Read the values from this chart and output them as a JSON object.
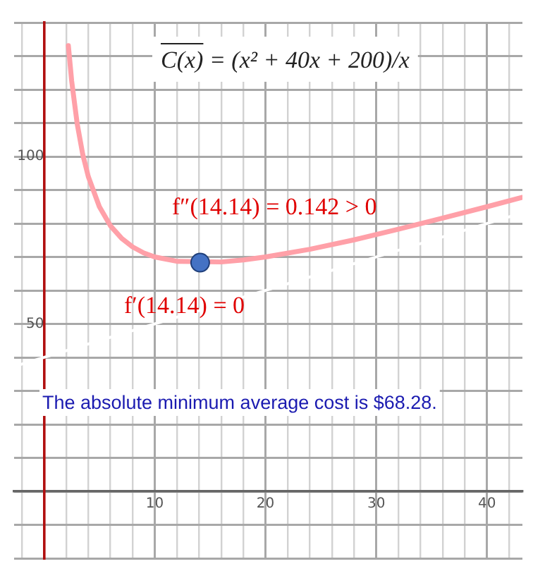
{
  "chart_data": {
    "type": "line",
    "title": "C(x) = (x² + 40x + 200)/x",
    "annotations": [
      "f″(14.14) = 0.142 > 0",
      "f′(14.14) = 0",
      "The absolute minimum average cost is $68.28."
    ],
    "series": [
      {
        "type": "line",
        "color": "#ffa0a8",
        "marker": "none",
        "x": [
          2.2,
          2.5,
          3,
          3.5,
          4,
          5,
          6,
          7,
          8,
          9,
          10,
          12,
          16,
          18,
          20,
          24,
          28,
          32,
          36,
          40,
          43.2
        ],
        "values": [
          133.1,
          122.5,
          109.7,
          100.6,
          94,
          85,
          79.3,
          75.6,
          73,
          71.2,
          70,
          68.7,
          68.5,
          69.1,
          70,
          72.3,
          75.1,
          78.3,
          81.6,
          85,
          87.8
        ]
      },
      {
        "type": "line",
        "color": "#ffffff",
        "marker": "none",
        "x": [
          -2.7,
          43.2
        ],
        "values": [
          37.3,
          83.2
        ]
      },
      {
        "type": "scatter",
        "color": "#4472c4",
        "marker": "circle",
        "x": [
          14.1
        ],
        "values": [
          68.3
        ]
      }
    ],
    "xlim": [
      -2.7,
      43.2
    ],
    "xticks": [
      {
        "value": -2,
        "label": null
      },
      {
        "value": 0,
        "label": null
      },
      {
        "value": 2,
        "label": null
      },
      {
        "value": 4,
        "label": null
      },
      {
        "value": 6,
        "label": null
      },
      {
        "value": 8,
        "label": null
      },
      10,
      {
        "value": 12,
        "label": null
      },
      {
        "value": 14,
        "label": null
      },
      {
        "value": 16,
        "label": null
      },
      {
        "value": 18,
        "label": null
      },
      20,
      {
        "value": 22,
        "label": null
      },
      {
        "value": 24,
        "label": null
      },
      {
        "value": 26,
        "label": null
      },
      {
        "value": 28,
        "label": null
      },
      30,
      {
        "value": 32,
        "label": null
      },
      {
        "value": 34,
        "label": null
      },
      {
        "value": 36,
        "label": null
      },
      {
        "value": 38,
        "label": null
      },
      40,
      {
        "value": 42,
        "label": null
      }
    ],
    "ylim": [
      -20,
      140
    ],
    "yticks": [
      {
        "value": -20,
        "label": null
      },
      {
        "value": -10,
        "label": null
      },
      {
        "value": 0,
        "label": null
      },
      {
        "value": 10,
        "label": null
      },
      {
        "value": 20,
        "label": null
      },
      {
        "value": 30,
        "label": null
      },
      {
        "value": 40,
        "label": null
      },
      50,
      {
        "value": 60,
        "label": null
      },
      {
        "value": 70,
        "label": null
      },
      {
        "value": 80,
        "label": null
      },
      {
        "value": 90,
        "label": null
      },
      100,
      {
        "value": 110,
        "label": null
      },
      {
        "value": 120,
        "label": null
      },
      {
        "value": 130,
        "label": null
      },
      {
        "value": 140,
        "label": null
      }
    ],
    "grid": true,
    "legend": false
  }
}
